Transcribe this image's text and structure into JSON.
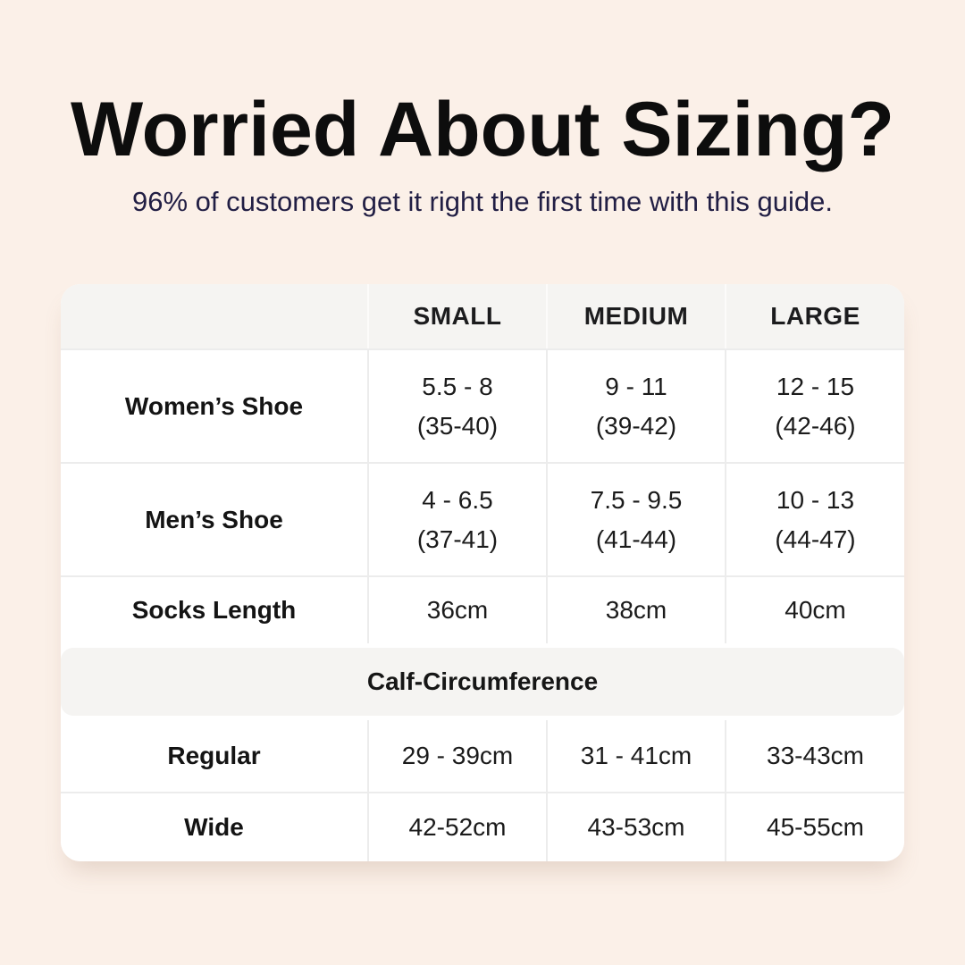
{
  "canvas": {
    "background_color": "#fbf0e8",
    "card_color": "#ffffff",
    "header_band_color": "#f5f4f2",
    "grid_line_color": "#ececec",
    "title_color": "#0d0d0d",
    "subtitle_color": "#211e44"
  },
  "header": {
    "title": "Worried About Sizing?",
    "subtitle": "96% of customers get it right the first time with this guide."
  },
  "table": {
    "columns": [
      "",
      "SMALL",
      "MEDIUM",
      "LARGE"
    ],
    "rows": [
      {
        "label": "Women’s Shoe",
        "cells": [
          {
            "l1": "5.5 - 8",
            "l2": "(35-40)"
          },
          {
            "l1": "9 - 11",
            "l2": "(39-42)"
          },
          {
            "l1": "12 - 15",
            "l2": "(42-46)"
          }
        ]
      },
      {
        "label": "Men’s Shoe",
        "cells": [
          {
            "l1": "4 - 6.5",
            "l2": "(37-41)"
          },
          {
            "l1": "7.5 - 9.5",
            "l2": "(41-44)"
          },
          {
            "l1": "10 - 13",
            "l2": "(44-47)"
          }
        ]
      },
      {
        "label": "Socks Length",
        "cells": [
          {
            "l1": "36cm"
          },
          {
            "l1": "38cm"
          },
          {
            "l1": "40cm"
          }
        ]
      }
    ],
    "section": {
      "label": "Calf-Circumference"
    },
    "section_rows": [
      {
        "label": "Regular",
        "cells": [
          {
            "l1": "29 - 39cm"
          },
          {
            "l1": "31 - 41cm"
          },
          {
            "l1": "33-43cm"
          }
        ]
      },
      {
        "label": "Wide",
        "cells": [
          {
            "l1": "42-52cm"
          },
          {
            "l1": "43-53cm"
          },
          {
            "l1": "45-55cm"
          }
        ]
      }
    ]
  }
}
